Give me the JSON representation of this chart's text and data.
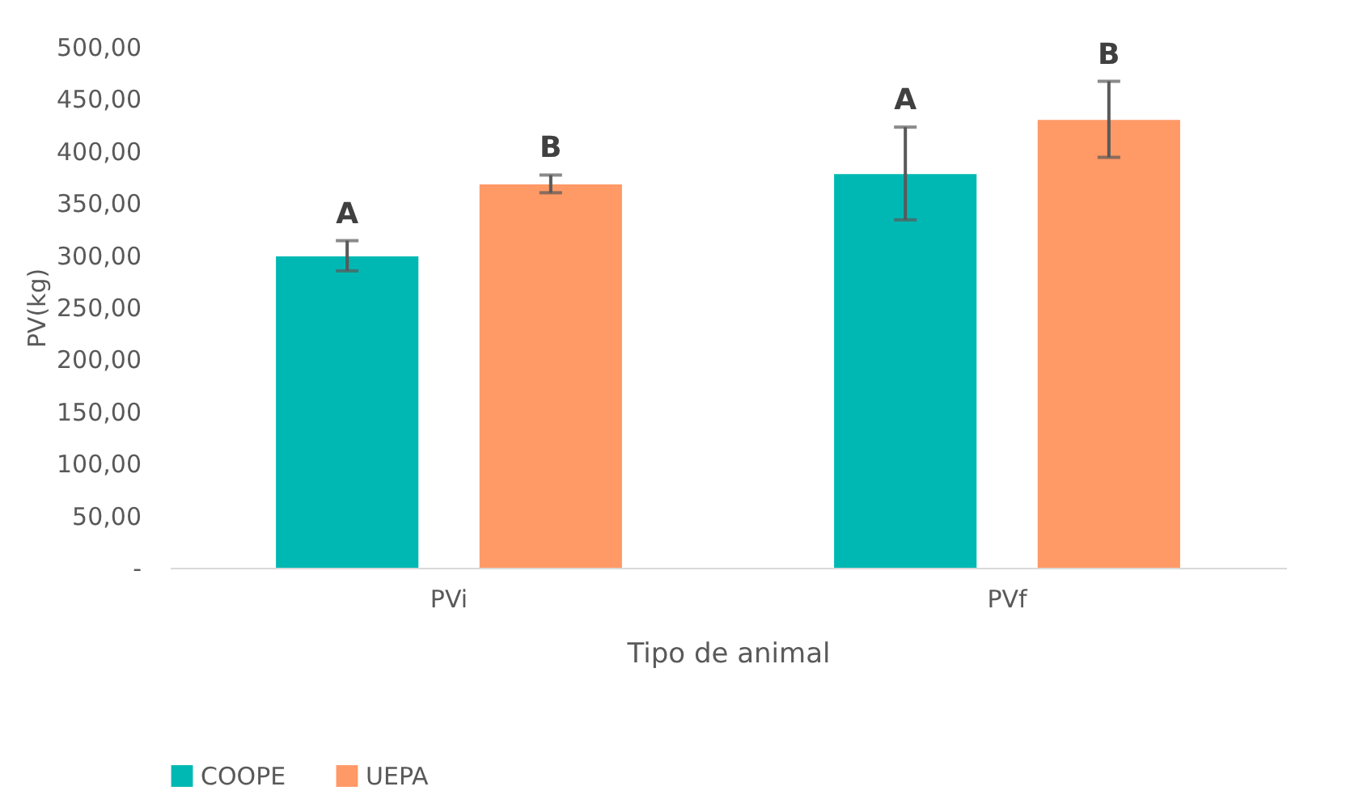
{
  "chart_data": {
    "type": "bar",
    "xlabel": "Tipo de animal",
    "ylabel": "PV(kg)",
    "categories": [
      "PVi",
      "PVf"
    ],
    "series": [
      {
        "name": "COOPE",
        "color": "#00b8b3",
        "values": [
          299,
          378
        ],
        "errors": [
          [
            285,
            314
          ],
          [
            334,
            423
          ]
        ]
      },
      {
        "name": "UEPA",
        "color": "#ff9966",
        "values": [
          368,
          430
        ],
        "errors": [
          [
            360,
            377
          ],
          [
            394,
            467
          ]
        ]
      }
    ],
    "ylim": [
      0,
      500
    ],
    "yticks": [
      {
        "value": 0,
        "label": "-"
      },
      {
        "value": 50,
        "label": "50,00"
      },
      {
        "value": 100,
        "label": "100,00"
      },
      {
        "value": 150,
        "label": "150,00"
      },
      {
        "value": 200,
        "label": "200,00"
      },
      {
        "value": 250,
        "label": "250,00"
      },
      {
        "value": 300,
        "label": "300,00"
      },
      {
        "value": 350,
        "label": "350,00"
      },
      {
        "value": 400,
        "label": "400,00"
      },
      {
        "value": 450,
        "label": "450,00"
      },
      {
        "value": 500,
        "label": "500,00"
      }
    ],
    "annotations": [
      "A",
      "B",
      "A",
      "B"
    ],
    "grid": false,
    "legend": "bottom"
  }
}
